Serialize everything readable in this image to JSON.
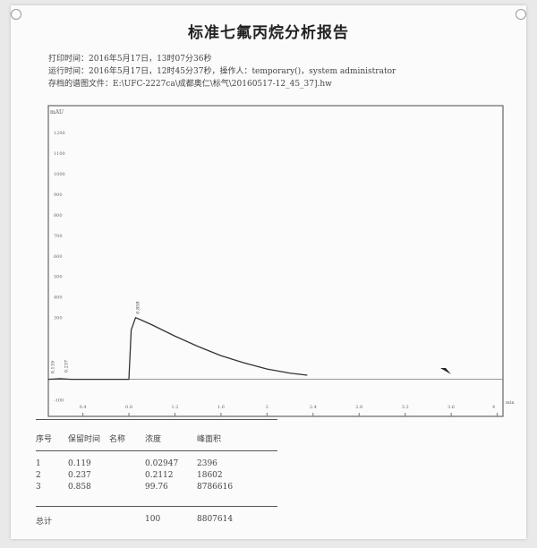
{
  "report": {
    "title": "标准七氟丙烷分析报告",
    "print_time": "打印时间：2016年5月17日，13时07分36秒",
    "run_time": "运行时间：2016年5月17日，12时45分37秒，操作人：temporary()，system administrator",
    "data_file": "存档的谱图文件：E:\\UFC-2227ca\\成都奥仁\\标气\\20160517-12_45_37].hw"
  },
  "chart_data": {
    "type": "line",
    "ylabel": "mAU",
    "xlabel": "min",
    "y_tick_labels": [
      "1200",
      "1100",
      "1000",
      "900",
      "800",
      "700",
      "600",
      "500",
      "400",
      "300",
      "-100"
    ],
    "y_ticks": [
      1200,
      1100,
      1000,
      900,
      800,
      700,
      600,
      500,
      400,
      300,
      -100
    ],
    "x_ticks": [
      0.4,
      0.8,
      1.2,
      1.6,
      2,
      2.4,
      2.8,
      3.2,
      3.6,
      4
    ],
    "x_tick_labels": [
      "0.4",
      "0.8",
      "1.2",
      "1.6",
      "2",
      "2.4",
      "2.8",
      "3.2",
      "3.6",
      "4"
    ],
    "xlim": [
      0.1,
      4.05
    ],
    "ylim": [
      -180,
      1330
    ],
    "peaks": [
      {
        "label": "0.119",
        "x": 0.119,
        "y": 10
      },
      {
        "label": "0.237",
        "x": 0.237,
        "y": 15
      },
      {
        "label": "0.858",
        "x": 0.858,
        "y": 300
      }
    ],
    "series": [
      {
        "x": [
          0.1,
          0.2,
          0.3,
          0.5,
          0.7,
          0.8,
          0.82,
          0.858,
          0.9,
          1.0,
          1.2,
          1.4,
          1.6,
          1.8,
          2.0,
          2.2,
          2.35
        ],
        "y": [
          0,
          3,
          0,
          0,
          0,
          0,
          240,
          300,
          290,
          265,
          210,
          160,
          115,
          80,
          50,
          30,
          20
        ]
      }
    ],
    "grid": false
  },
  "table": {
    "headers": [
      "序号",
      "保留时间",
      "名称",
      "浓度",
      "峰面积"
    ],
    "rows": [
      [
        "1",
        "0.119",
        "",
        "0.02947",
        "2396"
      ],
      [
        "2",
        "0.237",
        "",
        "0.2112",
        "18602"
      ],
      [
        "3",
        "0.858",
        "",
        "99.76",
        "8786616"
      ]
    ],
    "total_label": "总计",
    "total_conc": "100",
    "total_area": "8807614"
  }
}
